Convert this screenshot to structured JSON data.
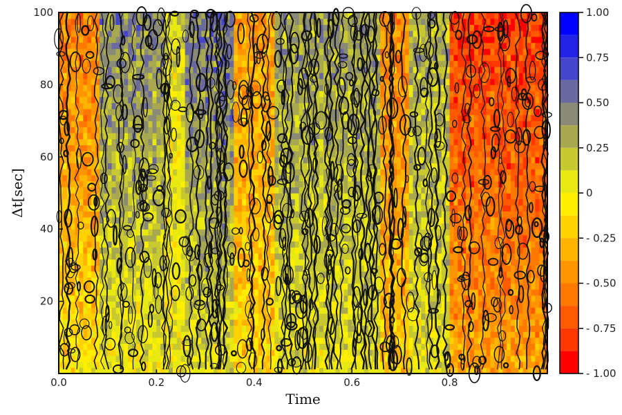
{
  "chart_data": {
    "type": "heatmap",
    "subtype": "filled-contour",
    "xlabel": "Time",
    "ylabel": "Δt[sec]",
    "xlim": [
      0.0,
      1.0
    ],
    "ylim": [
      0,
      100
    ],
    "x_ticks": [
      "0.0",
      "0.2",
      "0.4",
      "0.6",
      "0.8"
    ],
    "y_ticks": [
      "20",
      "40",
      "60",
      "80",
      "100"
    ],
    "grid": false,
    "colorbar": {
      "range": [
        -1.0,
        1.0
      ],
      "ticks": [
        {
          "value": 1.0,
          "label": "1.00"
        },
        {
          "value": 0.75,
          "label": "0.75"
        },
        {
          "value": 0.5,
          "label": "0.50"
        },
        {
          "value": 0.25,
          "label": "0.25"
        },
        {
          "value": 0.0,
          "label": "0"
        },
        {
          "value": -0.25,
          "label": "- 0.25"
        },
        {
          "value": -0.5,
          "label": "- 0.50"
        },
        {
          "value": -0.75,
          "label": "- 0.75"
        },
        {
          "value": -1.0,
          "label": "- 1.00"
        }
      ],
      "levels": [
        {
          "min": 0.875,
          "max": 1.0,
          "color": "#0000ff"
        },
        {
          "min": 0.75,
          "max": 0.875,
          "color": "#2323e6"
        },
        {
          "min": 0.625,
          "max": 0.75,
          "color": "#4646cc"
        },
        {
          "min": 0.5,
          "max": 0.625,
          "color": "#6a6aa0"
        },
        {
          "min": 0.375,
          "max": 0.5,
          "color": "#8a8a78"
        },
        {
          "min": 0.25,
          "max": 0.375,
          "color": "#a8a850"
        },
        {
          "min": 0.125,
          "max": 0.25,
          "color": "#c8c830"
        },
        {
          "min": 0.0,
          "max": 0.125,
          "color": "#e8e812"
        },
        {
          "min": -0.125,
          "max": 0.0,
          "color": "#ffee00"
        },
        {
          "min": -0.25,
          "max": -0.125,
          "color": "#ffd200"
        },
        {
          "min": -0.375,
          "max": -0.25,
          "color": "#ffb400"
        },
        {
          "min": -0.5,
          "max": -0.375,
          "color": "#ff9600"
        },
        {
          "min": -0.625,
          "max": -0.5,
          "color": "#ff7800"
        },
        {
          "min": -0.75,
          "max": -0.625,
          "color": "#ff5a00"
        },
        {
          "min": -0.875,
          "max": -0.75,
          "color": "#ff3700"
        },
        {
          "min": -1.0,
          "max": -0.875,
          "color": "#ff0000"
        }
      ]
    },
    "field_description": {
      "bands": [
        {
          "x": [
            0.0,
            0.08
          ],
          "upper_value": -0.55,
          "lower_value": -0.05
        },
        {
          "x": [
            0.08,
            0.22
          ],
          "upper_value": 0.45,
          "lower_value": -0.02
        },
        {
          "x": [
            0.22,
            0.26
          ],
          "upper_value": 0.1,
          "lower_value": 0.0
        },
        {
          "x": [
            0.26,
            0.36
          ],
          "upper_value": 0.5,
          "lower_value": 0.05
        },
        {
          "x": [
            0.36,
            0.44
          ],
          "upper_value": -0.4,
          "lower_value": -0.15
        },
        {
          "x": [
            0.44,
            0.66
          ],
          "upper_value": 0.35,
          "lower_value": 0.05
        },
        {
          "x": [
            0.66,
            0.72
          ],
          "upper_value": -0.5,
          "lower_value": -0.2
        },
        {
          "x": [
            0.72,
            0.8
          ],
          "upper_value": 0.3,
          "lower_value": 0.05
        },
        {
          "x": [
            0.8,
            1.0
          ],
          "upper_value": -0.8,
          "lower_value": -0.35
        }
      ]
    }
  }
}
